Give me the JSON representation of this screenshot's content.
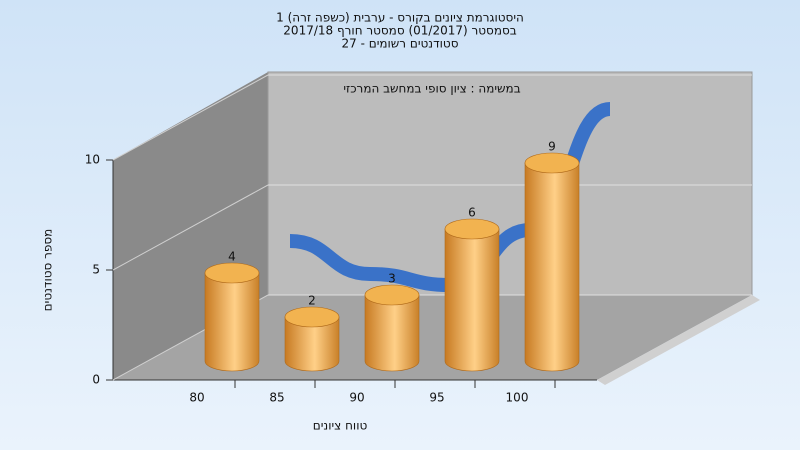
{
  "chart_data": {
    "type": "bar",
    "title_lines": [
      "היסטוגרמת ציונים בקורס - ערבית (כשפה זרה) 1",
      "בסמסטר  (01/2017)  סמסטר חורף 2017/18",
      "סטודנטים רשומים - 27"
    ],
    "annotation": "במשימה : ציון סופי במחשב המרכזי",
    "x_label": "טווח ציונים",
    "y_label": "מספר סטודנטים",
    "categories": [
      "80",
      "85",
      "90",
      "95",
      "100"
    ],
    "values": [
      4,
      2,
      3,
      6,
      9
    ],
    "color": "#f0a848",
    "trend": {
      "values": [
        4,
        2.5,
        2,
        4.5,
        10
      ],
      "color": "#3a72c8"
    },
    "ylim": [
      0,
      10
    ],
    "yticks": [
      0,
      5,
      10
    ],
    "grid": true
  }
}
